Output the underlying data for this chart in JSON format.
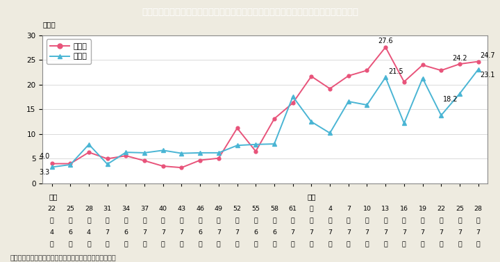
{
  "title": "Ｉ－１－２図　参議院議員通常選挙における候補者，当選者に占める女性の割合の推移",
  "title_bg": "#00aac8",
  "title_color": "#ffffff",
  "ylabel": "（％）",
  "ylim": [
    0,
    30
  ],
  "yticks": [
    0,
    5,
    10,
    15,
    20,
    25,
    30
  ],
  "bg_color": "#eeebe0",
  "plot_bg_color": "#ffffff",
  "candidates": [
    4.0,
    4.0,
    6.3,
    5.0,
    5.6,
    4.6,
    3.5,
    3.2,
    4.7,
    5.1,
    11.2,
    6.5,
    13.1,
    16.3,
    21.7,
    19.2,
    21.8,
    22.9,
    27.6,
    20.6,
    24.0,
    22.9,
    24.2,
    24.7
  ],
  "winners": [
    3.3,
    3.8,
    7.9,
    3.9,
    6.3,
    6.2,
    6.7,
    6.1,
    6.2,
    6.2,
    7.7,
    7.9,
    8.0,
    17.6,
    12.5,
    10.2,
    16.6,
    15.9,
    21.5,
    12.2,
    21.3,
    13.8,
    18.2,
    23.1
  ],
  "candidates_color": "#e8537a",
  "winners_color": "#4ab5d4",
  "candidates_label": "候補者",
  "winners_label": "当選者",
  "x_numbers": [
    "22",
    "25",
    "28",
    "31",
    "34",
    "37",
    "40",
    "43",
    "46",
    "49",
    "52",
    "55",
    "58",
    "61",
    "元",
    "4",
    "7",
    "10",
    "13",
    "16",
    "19",
    "22",
    "25",
    "28"
  ],
  "x_month": [
    "4",
    "6",
    "4",
    "7",
    "6",
    "7",
    "7",
    "7",
    "6",
    "7",
    "7",
    "6",
    "6",
    "7",
    "7",
    "7",
    "7",
    "7",
    "7",
    "7",
    "7",
    "7",
    "7",
    "7"
  ],
  "footer": "（備考）総務省「参議院議員通常選挙結果調」より作成。",
  "showa_label": "昭和",
  "heisei_label": "平成",
  "showa_idx": 0,
  "heisei_idx": 14
}
